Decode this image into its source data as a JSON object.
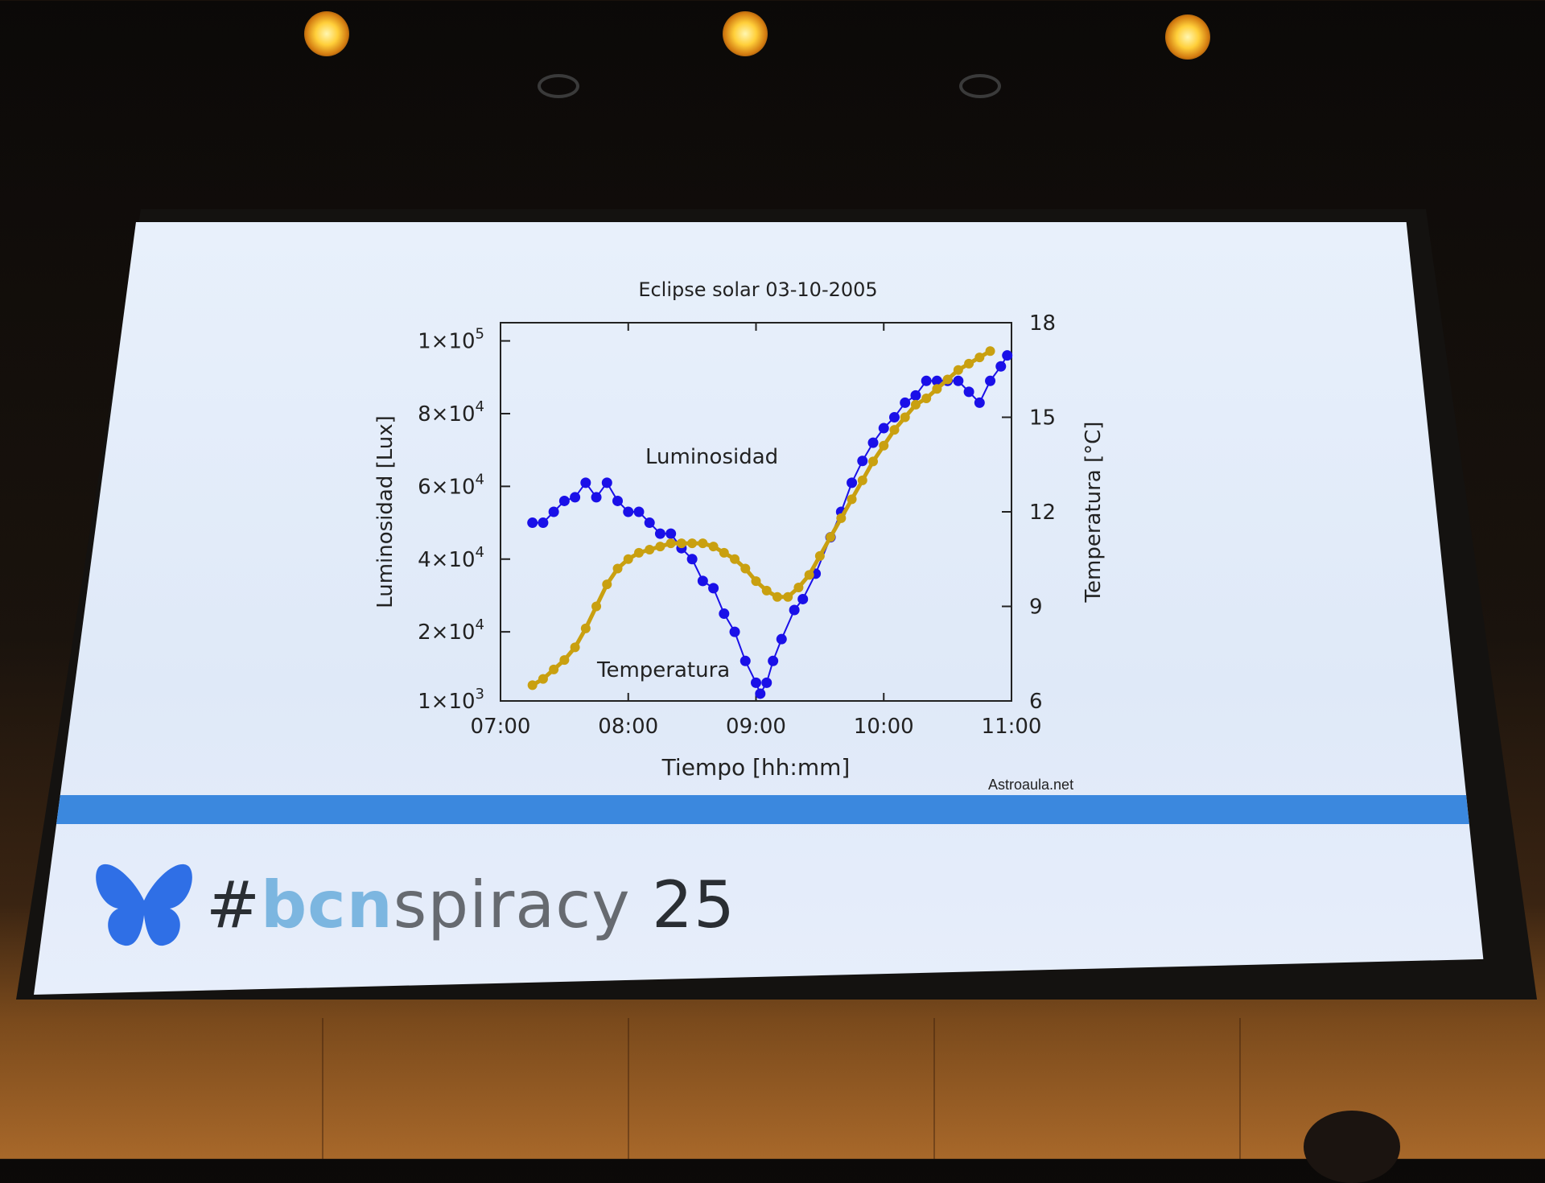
{
  "event": {
    "hashtag": "#",
    "brand_prefix": "bcn",
    "brand_suffix": "spiracy",
    "year": "25",
    "logo_icon": "butterfly-icon"
  },
  "credit": "Astroaula.net",
  "colors": {
    "luminosity": "#1a10e8",
    "temperature": "#c9a010",
    "stripe": "#3b88de",
    "butterfly": "#2f6fe6"
  },
  "chart_data": {
    "type": "line",
    "title": "Eclipse solar 03-10-2005",
    "xlabel": "Tiempo [hh:mm]",
    "ylabel_left": "Luminosidad [Lux]",
    "ylabel_right": "Temperatura [°C]",
    "x_ticks": [
      "07:00",
      "08:00",
      "09:00",
      "10:00",
      "11:00"
    ],
    "x_range": [
      "07:00",
      "11:00"
    ],
    "y_left_range": [
      1000,
      105000
    ],
    "y_left_ticks": [
      {
        "value": 1000,
        "base": "1×10",
        "exp": "3"
      },
      {
        "value": 20000,
        "base": "2×10",
        "exp": "4"
      },
      {
        "value": 40000,
        "base": "4×10",
        "exp": "4"
      },
      {
        "value": 60000,
        "base": "6×10",
        "exp": "4"
      },
      {
        "value": 80000,
        "base": "8×10",
        "exp": "4"
      },
      {
        "value": 100000,
        "base": "1×10",
        "exp": "5"
      }
    ],
    "y_right_range": [
      6,
      18
    ],
    "y_right_ticks": [
      "6",
      "9",
      "12",
      "15",
      "18"
    ],
    "grid": false,
    "annotations": [
      "Luminosidad",
      "Temperatura"
    ],
    "series": [
      {
        "name": "Luminosidad",
        "axis": "left",
        "marker": "circle",
        "points": [
          [
            "07:15",
            50000
          ],
          [
            "07:20",
            50000
          ],
          [
            "07:25",
            53000
          ],
          [
            "07:30",
            56000
          ],
          [
            "07:35",
            57000
          ],
          [
            "07:40",
            61000
          ],
          [
            "07:45",
            57000
          ],
          [
            "07:50",
            61000
          ],
          [
            "07:55",
            56000
          ],
          [
            "08:00",
            53000
          ],
          [
            "08:05",
            53000
          ],
          [
            "08:10",
            50000
          ],
          [
            "08:15",
            47000
          ],
          [
            "08:20",
            47000
          ],
          [
            "08:25",
            43000
          ],
          [
            "08:30",
            40000
          ],
          [
            "08:35",
            34000
          ],
          [
            "08:40",
            32000
          ],
          [
            "08:45",
            25000
          ],
          [
            "08:50",
            20000
          ],
          [
            "08:55",
            12000
          ],
          [
            "09:00",
            6000
          ],
          [
            "09:02",
            3000
          ],
          [
            "09:05",
            6000
          ],
          [
            "09:08",
            12000
          ],
          [
            "09:12",
            18000
          ],
          [
            "09:18",
            26000
          ],
          [
            "09:22",
            29000
          ],
          [
            "09:28",
            36000
          ],
          [
            "09:35",
            46000
          ],
          [
            "09:40",
            53000
          ],
          [
            "09:45",
            61000
          ],
          [
            "09:50",
            67000
          ],
          [
            "09:55",
            72000
          ],
          [
            "10:00",
            76000
          ],
          [
            "10:05",
            79000
          ],
          [
            "10:10",
            83000
          ],
          [
            "10:15",
            85000
          ],
          [
            "10:20",
            89000
          ],
          [
            "10:25",
            89000
          ],
          [
            "10:30",
            89000
          ],
          [
            "10:35",
            89000
          ],
          [
            "10:40",
            86000
          ],
          [
            "10:45",
            83000
          ],
          [
            "10:50",
            89000
          ],
          [
            "10:55",
            93000
          ],
          [
            "10:58",
            96000
          ]
        ]
      },
      {
        "name": "Temperatura",
        "axis": "right",
        "marker": "circle",
        "points": [
          [
            "07:15",
            6.5
          ],
          [
            "07:20",
            6.7
          ],
          [
            "07:25",
            7.0
          ],
          [
            "07:30",
            7.3
          ],
          [
            "07:35",
            7.7
          ],
          [
            "07:40",
            8.3
          ],
          [
            "07:45",
            9.0
          ],
          [
            "07:50",
            9.7
          ],
          [
            "07:55",
            10.2
          ],
          [
            "08:00",
            10.5
          ],
          [
            "08:05",
            10.7
          ],
          [
            "08:10",
            10.8
          ],
          [
            "08:15",
            10.9
          ],
          [
            "08:20",
            11.0
          ],
          [
            "08:25",
            11.0
          ],
          [
            "08:30",
            11.0
          ],
          [
            "08:35",
            11.0
          ],
          [
            "08:40",
            10.9
          ],
          [
            "08:45",
            10.7
          ],
          [
            "08:50",
            10.5
          ],
          [
            "08:55",
            10.2
          ],
          [
            "09:00",
            9.8
          ],
          [
            "09:05",
            9.5
          ],
          [
            "09:10",
            9.3
          ],
          [
            "09:15",
            9.3
          ],
          [
            "09:20",
            9.6
          ],
          [
            "09:25",
            10.0
          ],
          [
            "09:30",
            10.6
          ],
          [
            "09:35",
            11.2
          ],
          [
            "09:40",
            11.8
          ],
          [
            "09:45",
            12.4
          ],
          [
            "09:50",
            13.0
          ],
          [
            "09:55",
            13.6
          ],
          [
            "10:00",
            14.1
          ],
          [
            "10:05",
            14.6
          ],
          [
            "10:10",
            15.0
          ],
          [
            "10:15",
            15.4
          ],
          [
            "10:20",
            15.6
          ],
          [
            "10:25",
            15.9
          ],
          [
            "10:30",
            16.2
          ],
          [
            "10:35",
            16.5
          ],
          [
            "10:40",
            16.7
          ],
          [
            "10:45",
            16.9
          ],
          [
            "10:50",
            17.1
          ]
        ]
      }
    ]
  }
}
